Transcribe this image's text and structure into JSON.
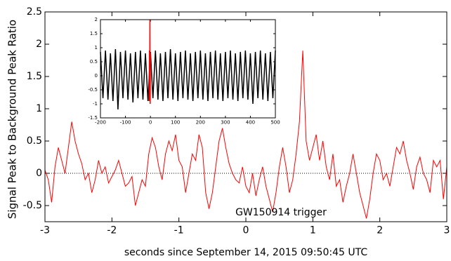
{
  "chart_data": [
    {
      "type": "line",
      "x_label": "seconds since September 14, 2015 09:50:45 UTC",
      "y_label": "Signal Peak to Background Peak Ratio",
      "annotation": "GW150914 trigger",
      "hline": 0,
      "xlim": [
        -3,
        3
      ],
      "ylim": [
        -0.75,
        2.5
      ],
      "xticks": [
        -3,
        -2,
        -1,
        0,
        1,
        2,
        3
      ],
      "yticks": [
        -0.5,
        0,
        0.5,
        1,
        1.5,
        2,
        2.5
      ],
      "series": [
        {
          "color": "#ff0000",
          "x": [
            -3.0,
            -2.95,
            -2.9,
            -2.85,
            -2.8,
            -2.75,
            -2.7,
            -2.65,
            -2.6,
            -2.55,
            -2.5,
            -2.45,
            -2.4,
            -2.35,
            -2.3,
            -2.25,
            -2.2,
            -2.15,
            -2.1,
            -2.05,
            -2.0,
            -1.95,
            -1.9,
            -1.85,
            -1.8,
            -1.75,
            -1.7,
            -1.65,
            -1.6,
            -1.55,
            -1.5,
            -1.45,
            -1.4,
            -1.35,
            -1.3,
            -1.25,
            -1.2,
            -1.15,
            -1.1,
            -1.05,
            -1.0,
            -0.95,
            -0.9,
            -0.85,
            -0.8,
            -0.75,
            -0.7,
            -0.65,
            -0.6,
            -0.55,
            -0.5,
            -0.45,
            -0.4,
            -0.35,
            -0.3,
            -0.25,
            -0.2,
            -0.15,
            -0.1,
            -0.05,
            0.0,
            0.05,
            0.1,
            0.15,
            0.2,
            0.25,
            0.3,
            0.35,
            0.4,
            0.45,
            0.5,
            0.55,
            0.6,
            0.65,
            0.7,
            0.75,
            0.8,
            0.85,
            0.9,
            0.95,
            1.0,
            1.05,
            1.1,
            1.15,
            1.2,
            1.25,
            1.3,
            1.35,
            1.4,
            1.45,
            1.5,
            1.55,
            1.6,
            1.65,
            1.7,
            1.75,
            1.8,
            1.85,
            1.9,
            1.95,
            2.0,
            2.05,
            2.1,
            2.15,
            2.2,
            2.25,
            2.3,
            2.35,
            2.4,
            2.45,
            2.5,
            2.55,
            2.6,
            2.65,
            2.7,
            2.75,
            2.8,
            2.85,
            2.9,
            2.95,
            3.0
          ],
          "values": [
            0.05,
            -0.1,
            -0.45,
            0.1,
            0.4,
            0.2,
            0.0,
            0.4,
            0.8,
            0.5,
            0.3,
            0.15,
            -0.1,
            0.0,
            -0.3,
            -0.1,
            0.2,
            0.0,
            0.1,
            -0.15,
            -0.05,
            0.05,
            0.2,
            0.0,
            -0.2,
            -0.15,
            -0.05,
            -0.5,
            -0.3,
            -0.1,
            -0.2,
            0.3,
            0.55,
            0.4,
            0.1,
            -0.1,
            0.3,
            0.5,
            0.35,
            0.6,
            0.2,
            0.1,
            -0.3,
            0.0,
            0.3,
            0.2,
            0.6,
            0.4,
            -0.3,
            -0.55,
            -0.3,
            0.1,
            0.5,
            0.7,
            0.4,
            0.15,
            0.0,
            -0.1,
            -0.15,
            0.1,
            -0.2,
            -0.3,
            0.0,
            -0.35,
            -0.1,
            0.1,
            -0.2,
            -0.4,
            -0.6,
            -0.3,
            0.1,
            0.4,
            0.1,
            -0.3,
            -0.1,
            0.3,
            0.8,
            1.9,
            0.5,
            0.2,
            0.4,
            0.6,
            0.2,
            0.5,
            0.1,
            -0.1,
            0.3,
            -0.2,
            -0.1,
            -0.45,
            -0.2,
            0.0,
            0.3,
            0.0,
            -0.3,
            -0.5,
            -0.7,
            -0.4,
            0.0,
            0.3,
            0.2,
            -0.1,
            0.0,
            -0.2,
            0.1,
            0.4,
            0.3,
            0.5,
            0.2,
            0.0,
            -0.25,
            0.1,
            0.25,
            0.0,
            -0.1,
            -0.3,
            0.2,
            0.1,
            0.2,
            -0.4,
            0.1
          ]
        }
      ]
    },
    {
      "type": "line",
      "xlim": [
        -200,
        500
      ],
      "ylim": [
        -1.5,
        2
      ],
      "xticks": [
        -200,
        -100,
        0,
        100,
        200,
        300,
        400,
        500
      ],
      "yticks": [
        -1.5,
        -1,
        -0.5,
        0,
        0.5,
        1,
        1.5,
        2
      ],
      "series": [
        {
          "color": "#000000",
          "x": [
            -200,
            -190,
            -180,
            -170,
            -160,
            -150,
            -140,
            -130,
            -120,
            -110,
            -100,
            -90,
            -80,
            -70,
            -60,
            -50,
            -40,
            -30,
            -20,
            -10,
            0,
            10,
            20,
            30,
            40,
            50,
            60,
            70,
            80,
            90,
            100,
            110,
            120,
            130,
            140,
            150,
            160,
            170,
            180,
            190,
            200,
            210,
            220,
            230,
            240,
            250,
            260,
            270,
            280,
            290,
            300,
            310,
            320,
            330,
            340,
            350,
            360,
            370,
            380,
            390,
            400,
            410,
            420,
            430,
            440,
            450,
            460,
            470,
            480,
            490,
            500
          ],
          "values": [
            0.85,
            -0.8,
            0.9,
            -0.85,
            0.8,
            -0.9,
            0.95,
            -1.2,
            0.85,
            -0.8,
            0.9,
            -0.85,
            0.8,
            -0.95,
            0.85,
            -0.8,
            0.9,
            -0.85,
            0.8,
            -0.9,
            0.85,
            -0.8,
            0.9,
            -0.85,
            0.8,
            -0.9,
            0.85,
            -0.8,
            0.95,
            -0.85,
            0.8,
            -0.9,
            0.85,
            -0.8,
            0.9,
            -0.85,
            0.8,
            -0.9,
            0.85,
            -0.8,
            0.9,
            -0.85,
            0.8,
            -0.9,
            0.85,
            -0.8,
            0.9,
            -0.85,
            0.8,
            -0.9,
            0.85,
            -0.8,
            0.9,
            -0.85,
            0.8,
            -0.9,
            0.85,
            -0.8,
            0.9,
            -0.85,
            0.8,
            -1.0,
            0.85,
            -0.8,
            0.9,
            -0.85,
            0.8,
            -0.9,
            0.85,
            -0.8,
            0.9
          ]
        },
        {
          "color": "#ff0000",
          "x": [
            -5,
            -4,
            -3,
            -2,
            -1,
            0
          ],
          "values": [
            -0.9,
            0.9,
            -0.8,
            2.0,
            -1.0,
            0.8
          ]
        }
      ]
    }
  ]
}
